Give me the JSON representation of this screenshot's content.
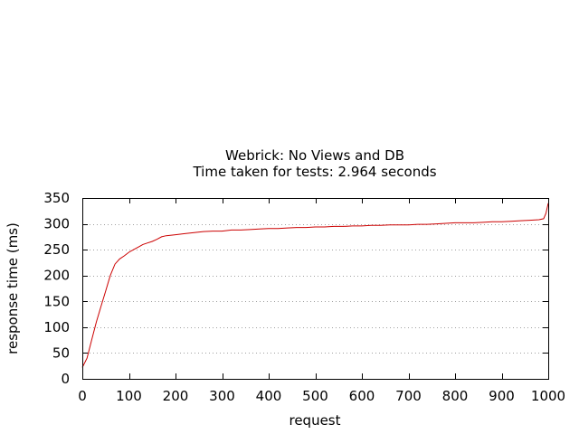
{
  "chart_data": {
    "type": "line",
    "title": "Webrick: No Views and DB",
    "subtitle": "Time taken for tests: 2.964 seconds",
    "xlabel": "request",
    "ylabel": "response time (ms)",
    "xlim": [
      0,
      1000
    ],
    "ylim": [
      0,
      350
    ],
    "xticks": [
      0,
      100,
      200,
      300,
      400,
      500,
      600,
      700,
      800,
      900,
      1000
    ],
    "yticks": [
      0,
      50,
      100,
      150,
      200,
      250,
      300,
      350
    ],
    "grid": "horizontal-dotted",
    "series": [
      {
        "color": "#cc0000",
        "x": [
          0,
          10,
          20,
          30,
          40,
          50,
          60,
          70,
          80,
          90,
          100,
          110,
          120,
          130,
          140,
          150,
          160,
          170,
          180,
          200,
          220,
          240,
          260,
          280,
          300,
          320,
          340,
          360,
          380,
          400,
          420,
          440,
          460,
          480,
          500,
          520,
          540,
          560,
          580,
          600,
          620,
          640,
          660,
          680,
          700,
          720,
          740,
          760,
          780,
          800,
          820,
          840,
          860,
          880,
          900,
          920,
          940,
          960,
          980,
          990,
          995,
          1000
        ],
        "y": [
          22,
          40,
          75,
          110,
          140,
          170,
          200,
          222,
          232,
          238,
          245,
          250,
          255,
          260,
          263,
          266,
          270,
          275,
          277,
          279,
          281,
          283,
          285,
          286,
          286,
          288,
          288,
          289,
          290,
          291,
          291,
          292,
          293,
          293,
          294,
          294,
          295,
          295,
          296,
          296,
          297,
          297,
          298,
          298,
          298,
          299,
          299,
          300,
          301,
          302,
          302,
          302,
          303,
          304,
          304,
          305,
          306,
          307,
          308,
          310,
          320,
          340
        ]
      }
    ]
  }
}
